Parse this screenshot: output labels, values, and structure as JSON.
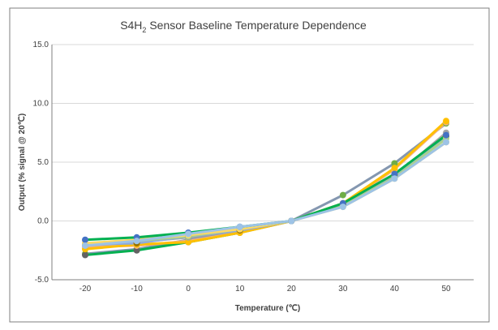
{
  "chart_data": {
    "type": "line",
    "title_main": "S4H",
    "title_sub": "2",
    "title_rest": " Sensor Baseline Temperature Dependence",
    "xlabel": "Temperature (℃)",
    "ylabel": "Output (% signal @ 20℃)",
    "x": [
      -20,
      -10,
      0,
      10,
      20,
      30,
      40,
      50
    ],
    "ylim": [
      -5,
      15
    ],
    "yticks": [
      "-5.0",
      "0.0",
      "5.0",
      "10.0",
      "15.0"
    ],
    "ytick_values": [
      -5,
      0,
      5,
      10,
      15
    ],
    "grid": true,
    "series": [
      {
        "color": "#8497B0",
        "marker": "#70AD47",
        "values": [
          -2.8,
          -2.4,
          -1.6,
          -0.9,
          0,
          2.2,
          4.9,
          8.3
        ]
      },
      {
        "color": "#00B050",
        "marker": "#636363",
        "values": [
          -2.9,
          -2.5,
          -1.8,
          -1.0,
          0,
          1.5,
          3.8,
          7.2
        ]
      },
      {
        "color": "#F4B183",
        "marker": "#F4B183",
        "values": [
          -2.2,
          -2.1,
          -1.7,
          -1.0,
          0,
          1.4,
          4.4,
          8.4
        ]
      },
      {
        "color": "#FFC000",
        "marker": "#FFC000",
        "values": [
          -2.4,
          -2.0,
          -1.8,
          -1.0,
          0,
          1.5,
          4.5,
          8.5
        ]
      },
      {
        "color": "#A5A5A5",
        "marker": "#A5A5A5",
        "values": [
          -2.1,
          -1.8,
          -1.4,
          -0.8,
          0,
          1.3,
          3.8,
          7.5
        ]
      },
      {
        "color": "#8FAADC",
        "marker": "#997300",
        "values": [
          -2.0,
          -1.9,
          -1.3,
          -0.8,
          0,
          1.4,
          3.9,
          7.2
        ]
      },
      {
        "color": "#A9D18E",
        "marker": "#A9D18E",
        "values": [
          -2.0,
          -1.7,
          -1.3,
          -0.7,
          0,
          1.3,
          3.7,
          7.0
        ]
      },
      {
        "color": "#FFD966",
        "marker": "#FFD966",
        "values": [
          -1.9,
          -1.6,
          -1.2,
          -0.7,
          0,
          1.2,
          3.6,
          6.7
        ]
      },
      {
        "color": "#00B050",
        "marker": "#4472C4",
        "values": [
          -1.6,
          -1.4,
          -1.0,
          -0.5,
          0,
          1.5,
          4.0,
          7.3
        ]
      },
      {
        "color": "#9DC3E6",
        "marker": "#9DC3E6",
        "values": [
          -2.1,
          -1.7,
          -1.1,
          -0.5,
          0,
          1.2,
          3.6,
          6.7
        ]
      }
    ]
  }
}
